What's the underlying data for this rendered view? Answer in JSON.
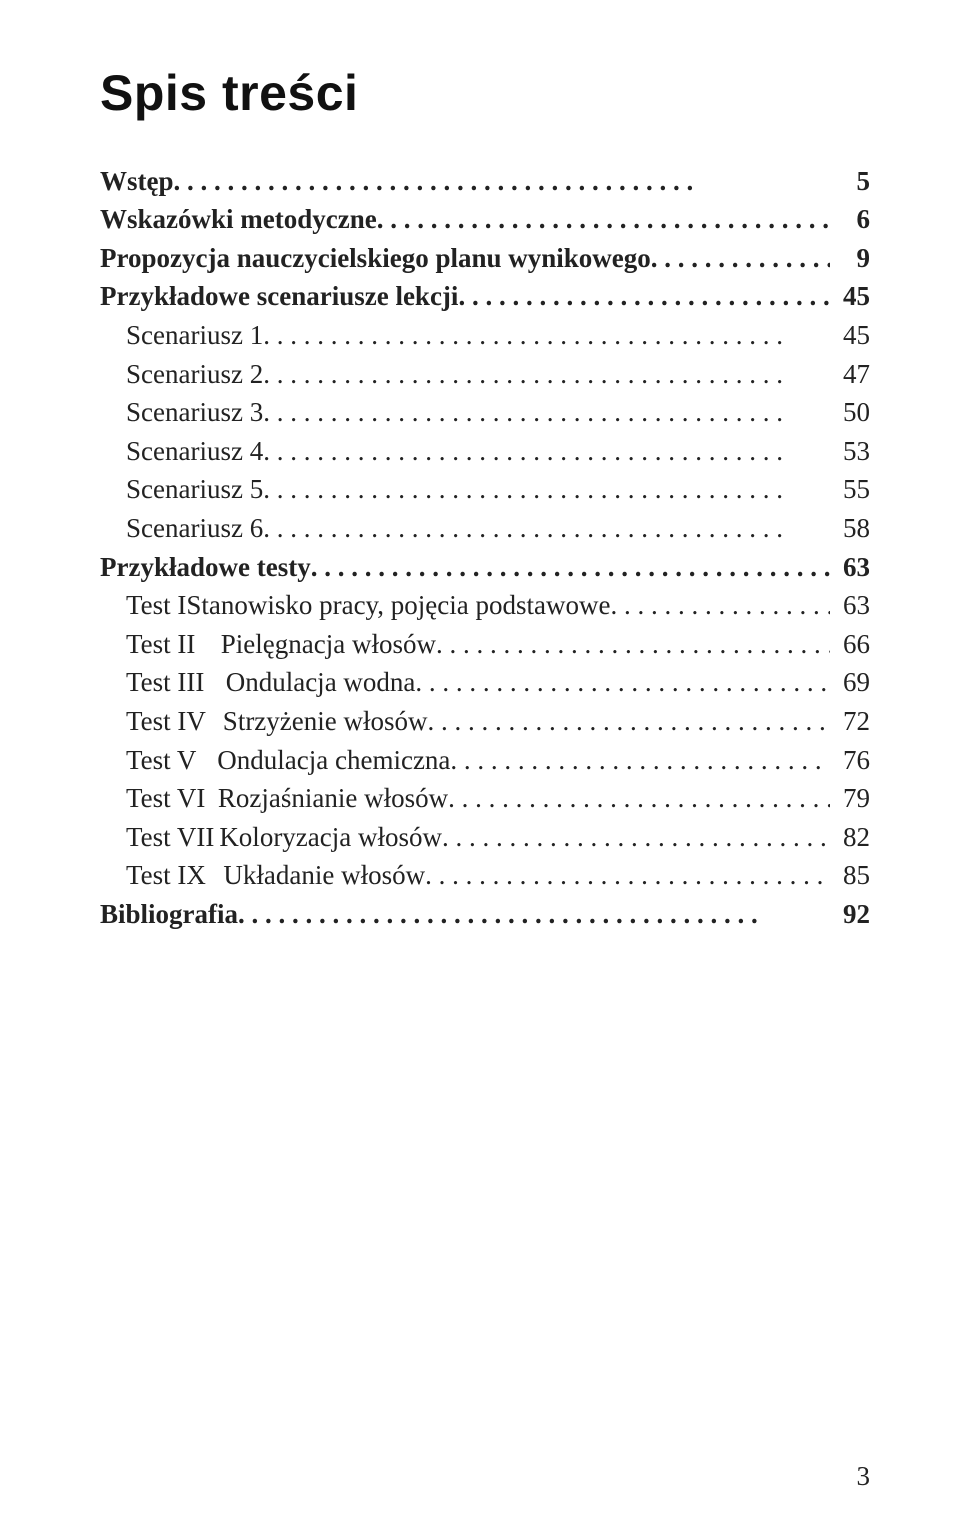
{
  "title": "Spis treści",
  "title_fontsize": 50,
  "body_fontsize": 27,
  "line_height": 1.43,
  "text_color": "#222222",
  "background": "#ffffff",
  "page_number": "3",
  "leader_str": " .   .   .   .   .   .   .   .   .   .   .   .   .   .   .   .   .   .   .   .   .   .   .   .   .   .   .   .   .   .   .   .   .   .   .   .   .   .   .",
  "toc": [
    {
      "label": "Wstęp",
      "page": "5",
      "bold": true,
      "indent": 0
    },
    {
      "label": "Wskazówki metodyczne",
      "page": "6",
      "bold": true,
      "indent": 0
    },
    {
      "label": "Propozycja nauczycielskiego planu wynikowego",
      "page": "9",
      "bold": true,
      "indent": 0
    },
    {
      "label": "Przykładowe scenariusze lekcji",
      "page": "45",
      "bold": true,
      "indent": 0
    },
    {
      "label": "Scenariusz 1",
      "page": "45",
      "bold": false,
      "indent": 1
    },
    {
      "label": "Scenariusz 2",
      "page": "47",
      "bold": false,
      "indent": 1
    },
    {
      "label": "Scenariusz 3",
      "page": "50",
      "bold": false,
      "indent": 1
    },
    {
      "label": "Scenariusz 4",
      "page": "53",
      "bold": false,
      "indent": 1
    },
    {
      "label": "Scenariusz 5",
      "page": "55",
      "bold": false,
      "indent": 1
    },
    {
      "label": "Scenariusz 6",
      "page": "58",
      "bold": false,
      "indent": 1
    },
    {
      "label": "Przykładowe testy",
      "page": "63",
      "bold": true,
      "indent": 0
    },
    {
      "testno": "Test I",
      "label": "Stanowisko pracy, pojęcia podstawowe",
      "page": "63",
      "bold": false,
      "indent": 2
    },
    {
      "testno": "Test II",
      "label": "Pielęgnacja włosów",
      "page": "66",
      "bold": false,
      "indent": 2
    },
    {
      "testno": "Test III",
      "label": "Ondulacja wodna",
      "page": "69",
      "bold": false,
      "indent": 2
    },
    {
      "testno": "Test IV",
      "label": "Strzyżenie włosów",
      "page": "72",
      "bold": false,
      "indent": 2
    },
    {
      "testno": "Test V",
      "label": "Ondulacja chemiczna",
      "page": "76",
      "bold": false,
      "indent": 2
    },
    {
      "testno": "Test VI",
      "label": "Rozjaśnianie włosów",
      "page": "79",
      "bold": false,
      "indent": 2
    },
    {
      "testno": "Test VII",
      "label": "Koloryzacja włosów",
      "page": "82",
      "bold": false,
      "indent": 2
    },
    {
      "testno": "Test IX",
      "label": "Układanie włosów",
      "page": "85",
      "bold": false,
      "indent": 2
    },
    {
      "label": "Bibliografia",
      "page": "92",
      "bold": true,
      "indent": 0
    }
  ]
}
